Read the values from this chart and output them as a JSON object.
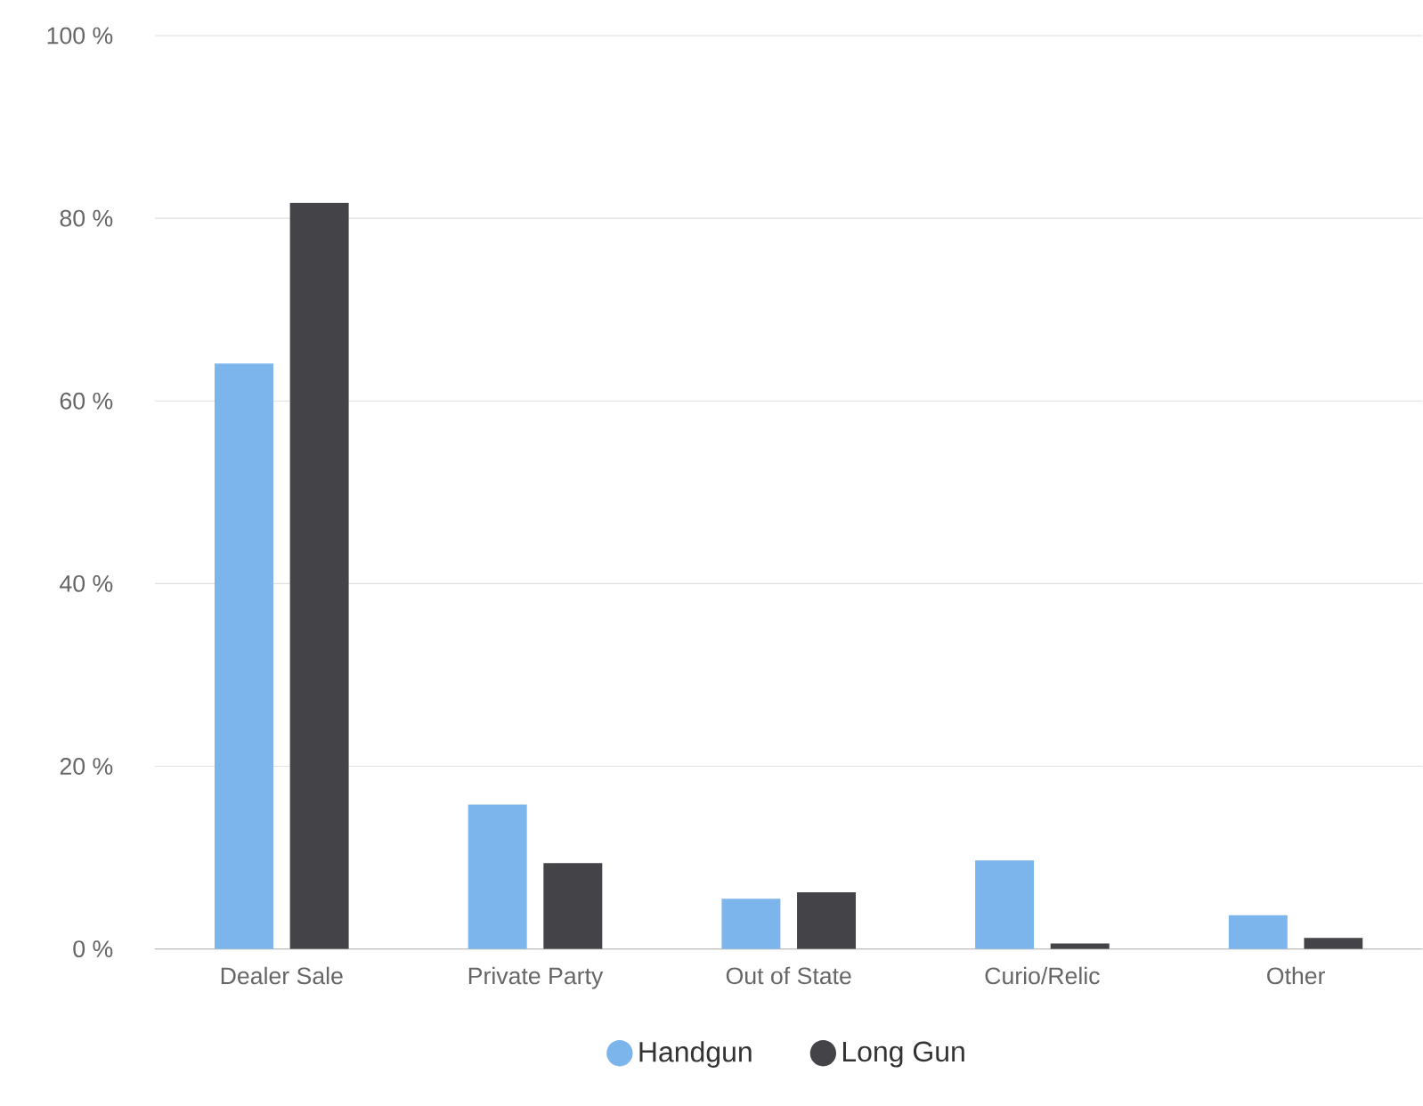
{
  "chart_data": {
    "type": "bar",
    "categories": [
      "Dealer Sale",
      "Private Party",
      "Out of State",
      "Curio/Relic",
      "Other"
    ],
    "series": [
      {
        "name": "Handgun",
        "color": "#7cb5ec",
        "values": [
          64.1,
          15.8,
          5.5,
          9.7,
          3.7
        ]
      },
      {
        "name": "Long Gun",
        "color": "#434348",
        "values": [
          81.7,
          9.4,
          6.2,
          0.6,
          1.2
        ]
      }
    ],
    "ylim": [
      0,
      100
    ],
    "yticks": [
      {
        "value": 0,
        "label": "0 %"
      },
      {
        "value": 20,
        "label": "20 %"
      },
      {
        "value": 40,
        "label": "40 %"
      },
      {
        "value": 60,
        "label": "60 %"
      },
      {
        "value": 80,
        "label": "80 %"
      },
      {
        "value": 100,
        "label": "100 %"
      }
    ],
    "grid": "y",
    "legend": "bottom"
  }
}
